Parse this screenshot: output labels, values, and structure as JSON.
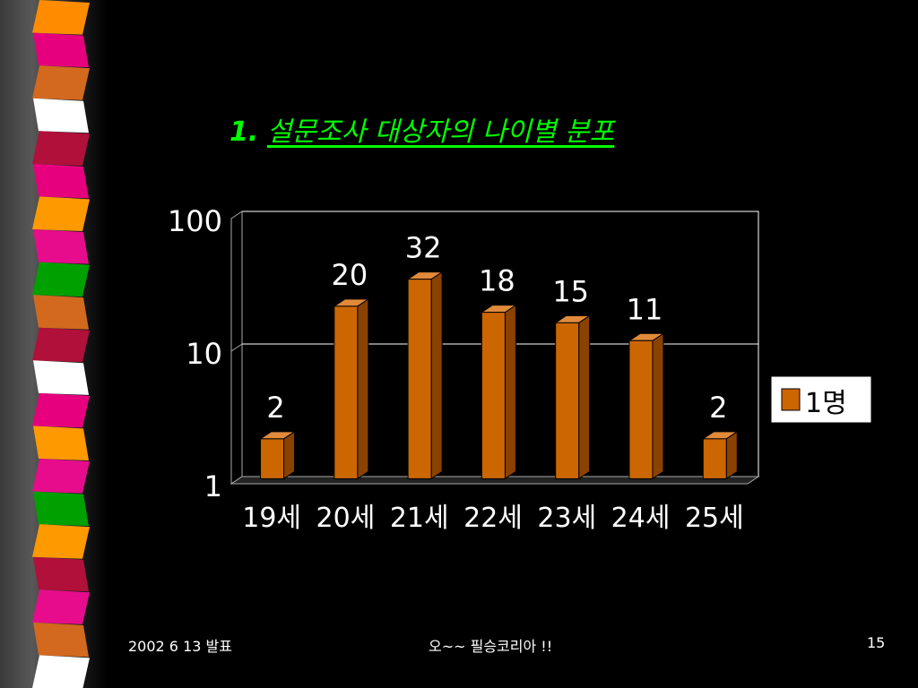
{
  "slide": {
    "title_number": "1.",
    "title_text": "설문조사 대상자의 나이별 분포",
    "title_color": "#00ff00"
  },
  "footer": {
    "date": "2002 6 13 발표",
    "center": "오~~ 필승코리아 !!",
    "page": "15"
  },
  "decoration": {
    "stripe_colors": [
      "#ff8c00",
      "#e6007e",
      "#d2691e",
      "#ffffff",
      "#b0103a",
      "#e6007e",
      "#ff9900",
      "#e60c8c",
      "#00a000",
      "#d2691e",
      "#b0103a",
      "#ffffff",
      "#e6007e",
      "#ff9900",
      "#e60c8c",
      "#00a000",
      "#ff9900",
      "#b0103a",
      "#e60c8c",
      "#d2691e",
      "#ffffff"
    ]
  },
  "chart_data": {
    "type": "bar",
    "style": "3d",
    "categories": [
      "19세",
      "20세",
      "21세",
      "22세",
      "23세",
      "24세",
      "25세"
    ],
    "series": [
      {
        "name": "1명",
        "values": [
          2,
          20,
          32,
          18,
          15,
          11,
          2
        ],
        "color": "#cc6600"
      }
    ],
    "data_labels": [
      "2",
      "20",
      "32",
      "18",
      "15",
      "11",
      "2"
    ],
    "y_scale": "log",
    "ylim": [
      1,
      100
    ],
    "y_ticks": [
      "1",
      "10",
      "100"
    ],
    "gridlines": true,
    "legend_position": "right",
    "title": "",
    "xlabel": "",
    "ylabel": ""
  }
}
